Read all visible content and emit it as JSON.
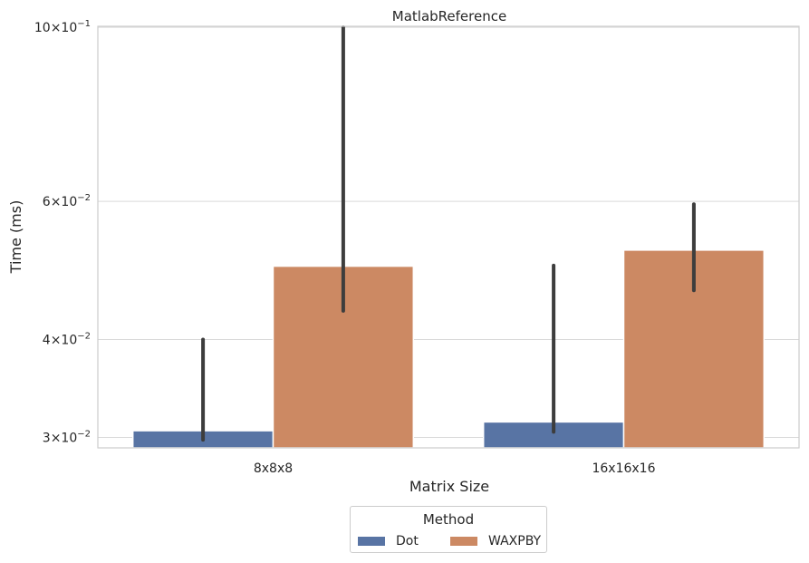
{
  "chart_data": {
    "type": "bar",
    "title": "MatlabReference",
    "xlabel": "Matrix Size",
    "ylabel": "Time (ms)",
    "yscale": "log",
    "ylim": [
      0.0291,
      0.1003
    ],
    "grid": true,
    "categories": [
      "8x8x8",
      "16x16x16"
    ],
    "yticks": [
      {
        "value": 0.03,
        "base": "3",
        "exp": "−2"
      },
      {
        "value": 0.04,
        "base": "4",
        "exp": "−2"
      },
      {
        "value": 0.06,
        "base": "6",
        "exp": "−2"
      },
      {
        "value": 0.1,
        "base": "10",
        "exp": "−1"
      }
    ],
    "legend": {
      "title": "Method",
      "placement": "bottom-center"
    },
    "series": [
      {
        "name": "Dot",
        "color": "#5874a4",
        "values": [
          0.0306,
          0.0314
        ],
        "err_low": [
          0.0298,
          0.0305
        ],
        "err_high": [
          0.04,
          0.0497
        ]
      },
      {
        "name": "WAXPBY",
        "color": "#cc8963",
        "values": [
          0.0496,
          0.052
        ],
        "err_low": [
          0.0435,
          0.0462
        ],
        "err_high": [
          0.1,
          0.0595
        ]
      }
    ]
  }
}
